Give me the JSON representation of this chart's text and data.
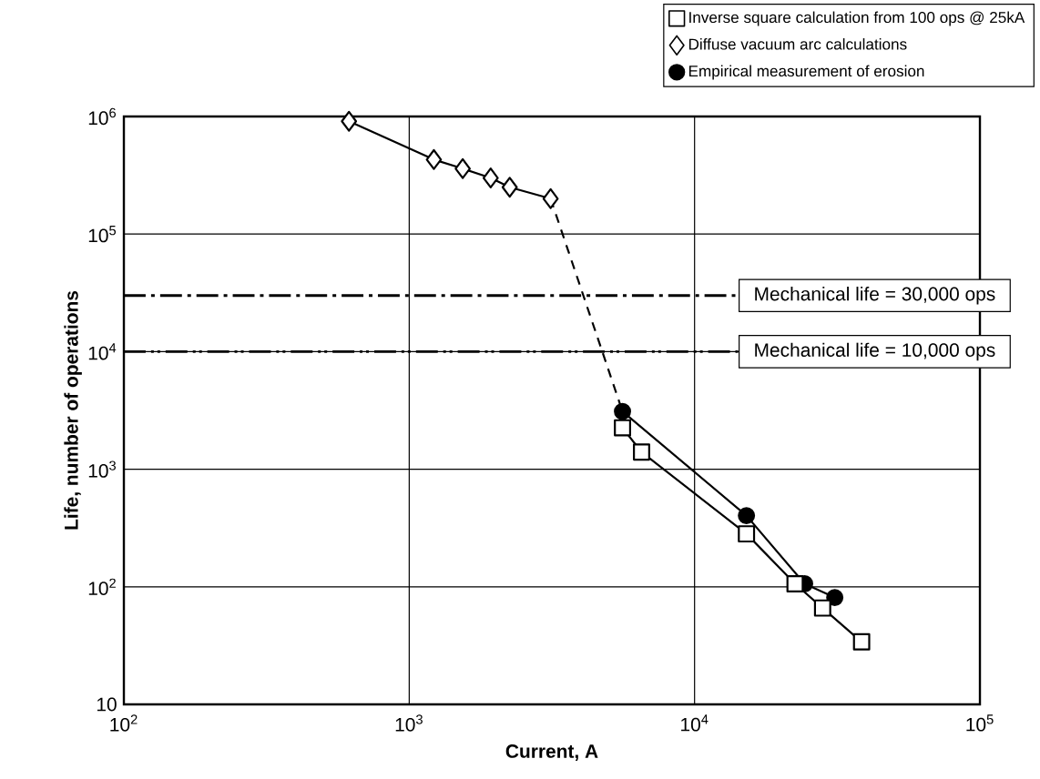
{
  "chart_data": {
    "type": "line",
    "xlabel": "Current, A",
    "ylabel": "Life, number of operations",
    "log": "xy",
    "grid": true,
    "legend": "top right",
    "xlim": [
      100,
      100000
    ],
    "ylim": [
      10,
      1000000
    ],
    "xticks": [
      {
        "value": 100,
        "label": "10$^{2}$"
      },
      {
        "value": 1000,
        "label": "10$^{3}$"
      },
      {
        "value": 10000,
        "label": "10$^{4}$"
      },
      {
        "value": 100000,
        "label": "10$^{5}$"
      }
    ],
    "yticks": [
      10,
      {
        "value": 100,
        "label": "10$^{2}$"
      },
      {
        "value": 1000,
        "label": "10$^{3}$"
      },
      {
        "value": 10000,
        "label": "10$^{4}$"
      },
      {
        "value": 100000,
        "label": "10$^{5}$"
      },
      {
        "value": 1000000,
        "label": "10$^{6}$"
      }
    ],
    "series": [
      {
        "name": "Inverse square calculation from 100 ops @ 25kA",
        "color": "#000000",
        "marker": "square",
        "x": [
          5590,
          6520,
          15200,
          22500,
          28100,
          38500
        ],
        "values": [
          2250,
          1400,
          282,
          106,
          66,
          34
        ]
      },
      {
        "name": "Diffuse vacuum arc calculations",
        "color": "#000000",
        "marker": "diamond",
        "x": [
          615,
          1220,
          1540,
          1930,
          2250,
          3130
        ],
        "values": [
          910000,
          430000,
          360000,
          300000,
          250000,
          200000
        ]
      },
      {
        "name": "Empirical measurement of erosion",
        "color": "#000000",
        "marker": "circle",
        "x": [
          5590,
          15200,
          24300,
          31000
        ],
        "values": [
          3100,
          403,
          106,
          81
        ]
      },
      {
        "color": "#000000",
        "marker": "none",
        "line_style": "dashed",
        "x": [
          3130,
          5590
        ],
        "values": [
          200000,
          3100
        ]
      }
    ],
    "ref_lines": [
      {
        "axis": "y",
        "value": 30000,
        "label": "Mechanical life = 30,000 ops",
        "line_style": "dashdot",
        "color": "#000000"
      },
      {
        "axis": "y",
        "value": 10000,
        "label": "Mechanical life = 10,000 ops",
        "line_style": "dashdotdot",
        "color": "#000000"
      }
    ]
  }
}
